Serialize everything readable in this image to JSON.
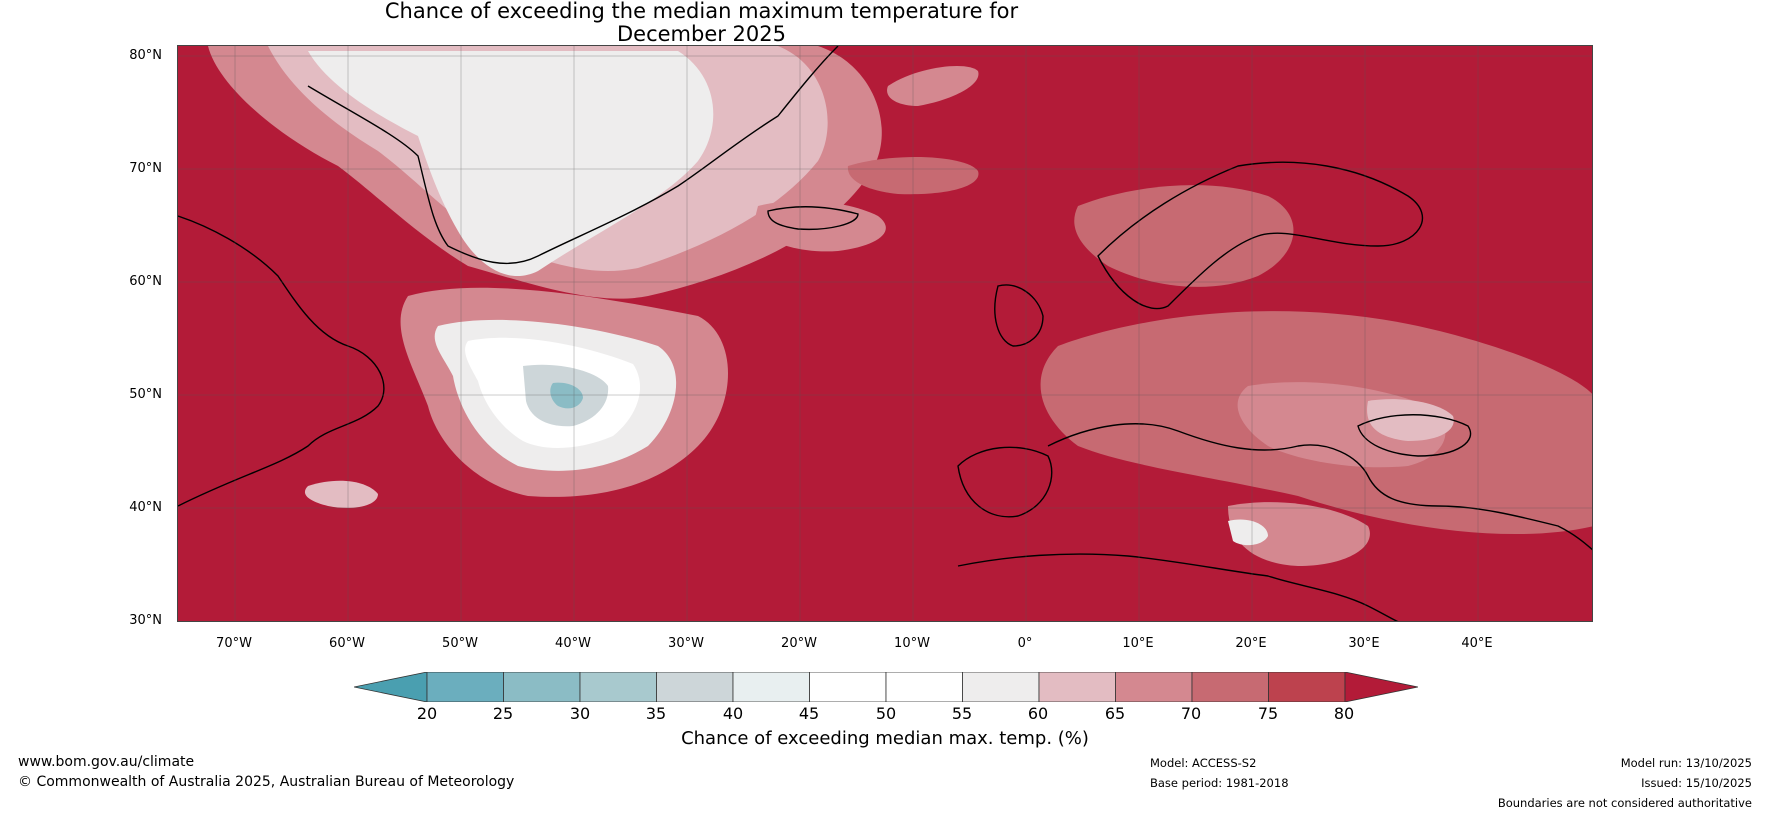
{
  "title": {
    "line1": "Chance of exceeding the median maximum temperature for",
    "line2": "December 2025"
  },
  "map": {
    "region": "North Atlantic and Europe",
    "lat_labels": [
      "80°N",
      "70°N",
      "60°N",
      "50°N",
      "40°N",
      "30°N"
    ],
    "lon_labels": [
      "70°W",
      "60°W",
      "50°W",
      "40°W",
      "30°W",
      "20°W",
      "10°W",
      "0°",
      "10°E",
      "20°E",
      "30°E",
      "40°E"
    ],
    "background_color": "#b31b38"
  },
  "colorbar": {
    "ticks": [
      "20",
      "25",
      "30",
      "35",
      "40",
      "45",
      "50",
      "55",
      "60",
      "65",
      "70",
      "75",
      "80"
    ],
    "label": "Chance of exceeding median max. temp. (%)",
    "colors": [
      "#4a9fb0",
      "#6baebe",
      "#8bbcc5",
      "#a8c9ce",
      "#cdd6d9",
      "#e8eff0",
      "#ffffff",
      "#ffffff",
      "#eeeded",
      "#e3bcc2",
      "#d48890",
      "#c76a72",
      "#bd424e",
      "#b31b38"
    ]
  },
  "footer": {
    "website": "www.bom.gov.au/climate",
    "copyright": "© Commonwealth of Australia 2025, Australian Bureau of Meteorology",
    "model": "Model: ACCESS-S2",
    "base_period": "Base period: 1981-2018",
    "model_run": "Model run: 13/10/2025",
    "issued": "Issued: 15/10/2025",
    "disclaimer": "Boundaries are not considered authoritative"
  }
}
